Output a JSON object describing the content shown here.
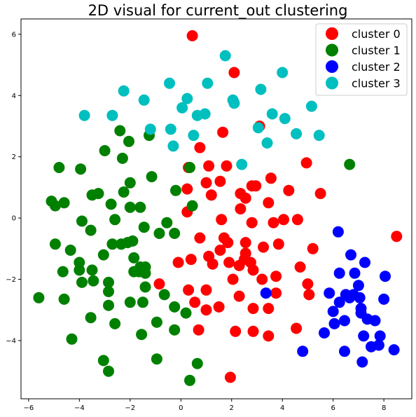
{
  "chart_data": {
    "type": "scatter",
    "title": "2D visual for current_out clustering",
    "xlabel": "",
    "ylabel": "",
    "xlim": [
      -6.3,
      9.1
    ],
    "ylim": [
      -5.9,
      6.5
    ],
    "xticks": [
      -6,
      -4,
      -2,
      0,
      2,
      4,
      6,
      8
    ],
    "yticks": [
      -4,
      -2,
      0,
      2,
      4,
      6
    ],
    "grid": false,
    "legend_position": "top-right",
    "series": [
      {
        "name": "cluster 0",
        "color": "#ff0000",
        "points": [
          [
            0.45,
            5.95
          ],
          [
            2.1,
            4.75
          ],
          [
            3.1,
            3.0
          ],
          [
            1.65,
            2.8
          ],
          [
            0.75,
            2.3
          ],
          [
            4.95,
            1.8
          ],
          [
            0.3,
            1.65
          ],
          [
            1.1,
            1.7
          ],
          [
            1.8,
            1.7
          ],
          [
            0.25,
            0.95
          ],
          [
            1.0,
            1.15
          ],
          [
            1.55,
            1.2
          ],
          [
            1.2,
            0.75
          ],
          [
            2.8,
            1.05
          ],
          [
            2.95,
            1.05
          ],
          [
            3.55,
            1.3
          ],
          [
            4.25,
            0.9
          ],
          [
            5.5,
            0.8
          ],
          [
            2.35,
            0.8
          ],
          [
            2.55,
            0.65
          ],
          [
            3.45,
            0.5
          ],
          [
            2.35,
            0.3
          ],
          [
            0.25,
            0.2
          ],
          [
            0.75,
            -0.65
          ],
          [
            1.6,
            -0.05
          ],
          [
            2.8,
            -0.15
          ],
          [
            3.65,
            -0.15
          ],
          [
            4.05,
            -0.05
          ],
          [
            4.6,
            -0.05
          ],
          [
            1.7,
            -0.65
          ],
          [
            1.85,
            -0.8
          ],
          [
            2.55,
            -0.8
          ],
          [
            3.25,
            -0.95
          ],
          [
            3.85,
            -0.85
          ],
          [
            5.2,
            -1.0
          ],
          [
            1.55,
            -1.05
          ],
          [
            2.55,
            -1.15
          ],
          [
            -0.1,
            -1.45
          ],
          [
            0.4,
            -1.35
          ],
          [
            1.1,
            -1.25
          ],
          [
            1.25,
            -1.5
          ],
          [
            1.9,
            -1.45
          ],
          [
            2.3,
            -1.55
          ],
          [
            2.75,
            -1.45
          ],
          [
            2.5,
            -1.35
          ],
          [
            4.7,
            -1.6
          ],
          [
            -0.85,
            -2.15
          ],
          [
            2.85,
            -1.7
          ],
          [
            2.05,
            -2.0
          ],
          [
            3.2,
            -2.0
          ],
          [
            3.75,
            -1.9
          ],
          [
            5.0,
            -2.15
          ],
          [
            0.3,
            -2.35
          ],
          [
            1.0,
            -2.35
          ],
          [
            0.55,
            -2.75
          ],
          [
            1.0,
            -3.0
          ],
          [
            1.5,
            -2.9
          ],
          [
            2.3,
            -2.55
          ],
          [
            2.85,
            -2.95
          ],
          [
            3.45,
            -2.95
          ],
          [
            3.75,
            -2.45
          ],
          [
            5.05,
            -2.5
          ],
          [
            0.7,
            -3.65
          ],
          [
            2.15,
            -3.7
          ],
          [
            2.85,
            -3.7
          ],
          [
            3.45,
            -3.85
          ],
          [
            4.55,
            -3.6
          ],
          [
            1.95,
            -5.2
          ],
          [
            8.5,
            -0.6
          ]
        ]
      },
      {
        "name": "cluster 1",
        "color": "#008000",
        "points": [
          [
            -2.4,
            2.85
          ],
          [
            -2.05,
            2.5
          ],
          [
            -1.25,
            2.7
          ],
          [
            -3.0,
            2.2
          ],
          [
            -2.3,
            1.95
          ],
          [
            -4.8,
            1.65
          ],
          [
            -3.95,
            1.6
          ],
          [
            0.35,
            1.65
          ],
          [
            6.65,
            1.75
          ],
          [
            -1.15,
            1.35
          ],
          [
            -2.0,
            1.15
          ],
          [
            -3.25,
            0.8
          ],
          [
            -3.5,
            0.75
          ],
          [
            -2.25,
            0.85
          ],
          [
            -0.2,
            0.9
          ],
          [
            -5.1,
            0.55
          ],
          [
            -4.6,
            0.5
          ],
          [
            -4.95,
            0.4
          ],
          [
            -2.75,
            0.45
          ],
          [
            -2.0,
            0.35
          ],
          [
            -1.6,
            0.35
          ],
          [
            0.45,
            0.4
          ],
          [
            -3.9,
            -0.1
          ],
          [
            -2.6,
            -0.05
          ],
          [
            -0.55,
            -0.15
          ],
          [
            -3.55,
            -0.4
          ],
          [
            -1.45,
            -0.3
          ],
          [
            -0.85,
            -0.5
          ],
          [
            -0.25,
            -0.5
          ],
          [
            -4.95,
            -0.85
          ],
          [
            -2.7,
            -0.85
          ],
          [
            -2.35,
            -0.85
          ],
          [
            -2.1,
            -0.8
          ],
          [
            -1.9,
            -0.75
          ],
          [
            -4.35,
            -1.05
          ],
          [
            -3.05,
            -1.2
          ],
          [
            -1.85,
            -1.3
          ],
          [
            -4.0,
            -1.45
          ],
          [
            -4.0,
            -1.7
          ],
          [
            -3.5,
            -1.7
          ],
          [
            -4.65,
            -1.75
          ],
          [
            -1.6,
            -1.6
          ],
          [
            -1.4,
            -1.6
          ],
          [
            -1.85,
            -1.75
          ],
          [
            -1.65,
            -1.75
          ],
          [
            -1.4,
            -1.8
          ],
          [
            -3.45,
            -2.05
          ],
          [
            -3.9,
            -2.1
          ],
          [
            -2.85,
            -2.1
          ],
          [
            -1.4,
            -2.25
          ],
          [
            -0.65,
            -2.5
          ],
          [
            -2.85,
            -2.4
          ],
          [
            -2.0,
            -2.75
          ],
          [
            -1.5,
            -2.75
          ],
          [
            -4.6,
            -2.65
          ],
          [
            -5.6,
            -2.6
          ],
          [
            -2.85,
            -2.85
          ],
          [
            -0.25,
            -2.9
          ],
          [
            -3.55,
            -3.25
          ],
          [
            -2.6,
            -3.45
          ],
          [
            -0.95,
            -3.4
          ],
          [
            0.2,
            -3.1
          ],
          [
            -0.25,
            -3.65
          ],
          [
            -4.3,
            -3.95
          ],
          [
            -1.55,
            -3.8
          ],
          [
            -3.05,
            -4.65
          ],
          [
            -0.95,
            -4.6
          ],
          [
            0.65,
            -4.75
          ],
          [
            -2.85,
            -5.0
          ],
          [
            0.35,
            -5.3
          ]
        ]
      },
      {
        "name": "cluster 2",
        "color": "#0000ff",
        "points": [
          [
            6.2,
            -0.45
          ],
          [
            6.7,
            -1.2
          ],
          [
            7.25,
            -1.45
          ],
          [
            6.25,
            -1.8
          ],
          [
            6.85,
            -1.8
          ],
          [
            8.05,
            -1.9
          ],
          [
            5.85,
            -2.45
          ],
          [
            6.5,
            -2.5
          ],
          [
            6.8,
            -2.5
          ],
          [
            7.0,
            -2.2
          ],
          [
            6.25,
            -2.75
          ],
          [
            7.05,
            -2.6
          ],
          [
            6.65,
            -2.6
          ],
          [
            8.0,
            -2.65
          ],
          [
            6.0,
            -3.05
          ],
          [
            7.1,
            -2.95
          ],
          [
            7.1,
            -3.1
          ],
          [
            7.35,
            -3.3
          ],
          [
            7.65,
            -3.35
          ],
          [
            6.05,
            -3.45
          ],
          [
            6.45,
            -3.35
          ],
          [
            5.65,
            -3.75
          ],
          [
            7.2,
            -3.85
          ],
          [
            7.85,
            -3.85
          ],
          [
            7.5,
            -4.2
          ],
          [
            7.8,
            -4.15
          ],
          [
            8.4,
            -4.3
          ],
          [
            4.8,
            -4.35
          ],
          [
            6.45,
            -4.35
          ],
          [
            7.15,
            -4.7
          ],
          [
            3.35,
            -2.45
          ]
        ]
      },
      {
        "name": "cluster 3",
        "color": "#00bfbf",
        "points": [
          [
            1.75,
            5.3
          ],
          [
            -0.45,
            4.4
          ],
          [
            1.05,
            4.4
          ],
          [
            4.0,
            4.75
          ],
          [
            -2.25,
            4.15
          ],
          [
            3.15,
            4.2
          ],
          [
            0.25,
            3.9
          ],
          [
            -1.45,
            3.85
          ],
          [
            2.05,
            3.85
          ],
          [
            2.1,
            3.75
          ],
          [
            0.05,
            3.6
          ],
          [
            5.15,
            3.65
          ],
          [
            -3.8,
            3.35
          ],
          [
            -2.7,
            3.35
          ],
          [
            0.65,
            3.35
          ],
          [
            0.95,
            3.4
          ],
          [
            3.6,
            3.4
          ],
          [
            4.1,
            3.25
          ],
          [
            -1.2,
            2.9
          ],
          [
            -0.4,
            2.9
          ],
          [
            3.05,
            2.95
          ],
          [
            4.55,
            2.75
          ],
          [
            5.45,
            2.7
          ],
          [
            0.5,
            2.7
          ],
          [
            3.4,
            2.45
          ],
          [
            -0.3,
            2.35
          ],
          [
            2.4,
            1.75
          ]
        ]
      }
    ]
  }
}
